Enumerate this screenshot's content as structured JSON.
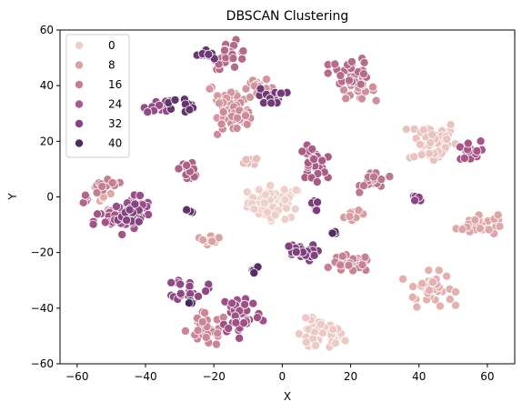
{
  "chart_data": {
    "type": "scatter",
    "title": "DBSCAN Clustering",
    "xlabel": "X",
    "ylabel": "Y",
    "xlim": [
      -65,
      68
    ],
    "ylim": [
      -60,
      60
    ],
    "xticks": [
      -60,
      -40,
      -20,
      0,
      20,
      40,
      60
    ],
    "yticks": [
      -60,
      -40,
      -20,
      0,
      20,
      40,
      60
    ],
    "xtick_labels": [
      "−60",
      "−40",
      "−20",
      "0",
      "20",
      "40",
      "60"
    ],
    "ytick_labels": [
      "−60",
      "−40",
      "−20",
      "0",
      "20",
      "40",
      "60"
    ],
    "grid": false,
    "legend_position": "upper-left",
    "hue_range": [
      0,
      46
    ],
    "colors": {
      "light": "#edd1cb",
      "dark": "#2d1e3e"
    },
    "legend": [
      {
        "label": "0",
        "value": 0
      },
      {
        "label": "8",
        "value": 8
      },
      {
        "label": "16",
        "value": 16
      },
      {
        "label": "24",
        "value": 24
      },
      {
        "label": "32",
        "value": 32
      },
      {
        "label": "40",
        "value": 40
      }
    ],
    "clusters": [
      {
        "label": 0,
        "cx": -2,
        "cy": -2,
        "sx": 4,
        "sy": 3,
        "n": 60
      },
      {
        "label": 1,
        "cx": 11,
        "cy": -50,
        "sx": 3.5,
        "sy": 3,
        "n": 45
      },
      {
        "label": 2,
        "cx": 44,
        "cy": 20,
        "sx": 3.5,
        "sy": 4,
        "n": 50
      },
      {
        "label": 3,
        "cx": -8,
        "cy": 13,
        "sx": 1.5,
        "sy": 1,
        "n": 6
      },
      {
        "label": 5,
        "cx": 43,
        "cy": -33,
        "sx": 3.5,
        "sy": 3,
        "n": 40
      },
      {
        "label": 6,
        "cx": -52,
        "cy": 0,
        "sx": 1.5,
        "sy": 3,
        "n": 6
      },
      {
        "label": 7,
        "cx": 57,
        "cy": -10,
        "sx": 3,
        "sy": 2,
        "n": 35
      },
      {
        "label": 8,
        "cx": -21,
        "cy": -15,
        "sx": 1.5,
        "sy": 1,
        "n": 10
      },
      {
        "label": 9,
        "cx": 21,
        "cy": -7,
        "sx": 1.5,
        "sy": 1,
        "n": 10
      },
      {
        "label": 10,
        "cx": -16,
        "cy": 35,
        "sx": 3,
        "sy": 3,
        "n": 25
      },
      {
        "label": 11,
        "cx": -7,
        "cy": 39,
        "sx": 2.5,
        "sy": 1.5,
        "n": 15
      },
      {
        "label": 12,
        "cx": 22,
        "cy": 39,
        "sx": 2.5,
        "sy": 2,
        "n": 20
      },
      {
        "label": 13,
        "cx": -13,
        "cy": 28,
        "sx": 3,
        "sy": 3,
        "n": 35
      },
      {
        "label": 14,
        "cx": -22,
        "cy": -48,
        "sx": 3,
        "sy": 3,
        "n": 35
      },
      {
        "label": 15,
        "cx": 20,
        "cy": -24,
        "sx": 3,
        "sy": 1.5,
        "n": 35
      },
      {
        "label": 16,
        "cx": -52,
        "cy": 3,
        "sx": 3,
        "sy": 1.5,
        "n": 12
      },
      {
        "label": 18,
        "cx": 27,
        "cy": 6,
        "sx": 2,
        "sy": 2,
        "n": 18
      },
      {
        "label": 20,
        "cx": 20,
        "cy": 45,
        "sx": 3,
        "sy": 2.5,
        "n": 30
      },
      {
        "label": 21,
        "cx": -15,
        "cy": 51,
        "sx": 2.5,
        "sy": 2.5,
        "n": 25
      },
      {
        "label": 22,
        "cx": -58,
        "cy": -1,
        "sx": 1.5,
        "sy": 1,
        "n": 6
      },
      {
        "label": 23,
        "cx": -27,
        "cy": 10,
        "sx": 1.5,
        "sy": 1.5,
        "n": 12
      },
      {
        "label": 24,
        "cx": 9,
        "cy": 12,
        "sx": 2,
        "sy": 3,
        "n": 35
      },
      {
        "label": 25,
        "cx": 54,
        "cy": 16,
        "sx": 2,
        "sy": 2,
        "n": 20
      },
      {
        "label": 26,
        "cx": -49,
        "cy": -9,
        "sx": 3,
        "sy": 2.5,
        "n": 25
      },
      {
        "label": 27,
        "cx": -12,
        "cy": -42,
        "sx": 3,
        "sy": 4,
        "n": 50
      },
      {
        "label": 28,
        "cx": -43,
        "cy": -4,
        "sx": 2.5,
        "sy": 2.5,
        "n": 30
      },
      {
        "label": 29,
        "cx": -36,
        "cy": 33,
        "sx": 2,
        "sy": 1.5,
        "n": 15
      },
      {
        "label": 30,
        "cx": -27,
        "cy": -33,
        "sx": 2.5,
        "sy": 2,
        "n": 25
      },
      {
        "label": 31,
        "cx": 39,
        "cy": -1,
        "sx": 1,
        "sy": 1,
        "n": 6
      },
      {
        "label": 32,
        "cx": -45,
        "cy": -7,
        "sx": 3,
        "sy": 2,
        "n": 20
      },
      {
        "label": 33,
        "cx": 5,
        "cy": -20,
        "sx": 2.5,
        "sy": 1.5,
        "n": 25
      },
      {
        "label": 34,
        "cx": 9,
        "cy": -3,
        "sx": 0.7,
        "sy": 1,
        "n": 6
      },
      {
        "label": 35,
        "cx": -3,
        "cy": 36,
        "sx": 2,
        "sy": 1.5,
        "n": 15
      },
      {
        "label": 36,
        "cx": -22,
        "cy": 51,
        "sx": 1.5,
        "sy": 1,
        "n": 10
      },
      {
        "label": 37,
        "cx": -30,
        "cy": 33,
        "sx": 2,
        "sy": 1.5,
        "n": 10
      },
      {
        "label": 38,
        "cx": -27,
        "cy": -5,
        "sx": 0.6,
        "sy": 0.6,
        "n": 4
      },
      {
        "label": 39,
        "cx": -8,
        "cy": -26,
        "sx": 0.6,
        "sy": 0.6,
        "n": 4
      },
      {
        "label": 40,
        "cx": 15,
        "cy": -13,
        "sx": 0.5,
        "sy": 0.5,
        "n": 3
      },
      {
        "label": 41,
        "cx": -27,
        "cy": -38,
        "sx": 0.6,
        "sy": 0.6,
        "n": 4
      }
    ]
  }
}
